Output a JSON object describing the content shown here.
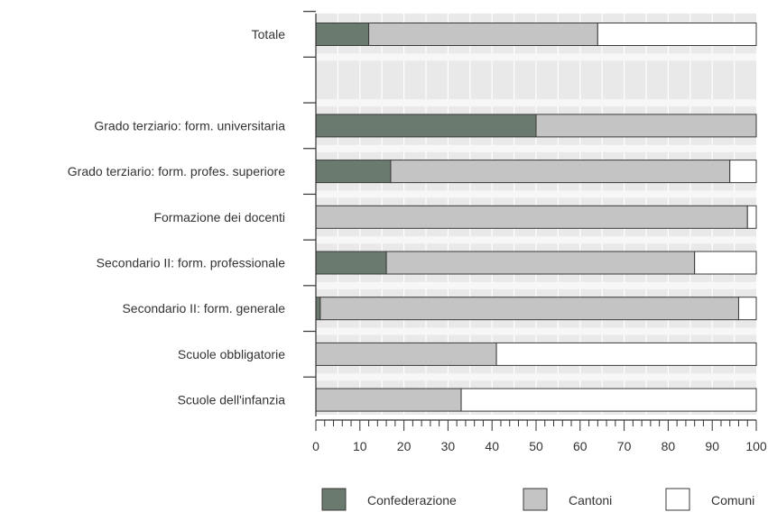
{
  "chart_data": {
    "type": "bar",
    "orientation": "horizontal",
    "stacked": true,
    "categories": [
      "Totale",
      "",
      "Grado terziario: form. universitaria",
      "Grado terziario: form. profes. superiore",
      "Formazione dei docenti",
      "Secondario II: form. professionale",
      "Secondario II: form. generale",
      "Scuole obbligatorie",
      "Scuole dell'infanzia"
    ],
    "series": [
      {
        "name": "Confederazione",
        "color": "#6b7a6e",
        "values": [
          12,
          null,
          50,
          17,
          0,
          16,
          1,
          0,
          0
        ]
      },
      {
        "name": "Cantoni",
        "color": "#c4c4c4",
        "values": [
          52,
          null,
          50,
          77,
          98,
          70,
          95,
          41,
          33
        ]
      },
      {
        "name": "Comuni",
        "color": "#ffffff",
        "values": [
          36,
          null,
          0,
          6,
          2,
          14,
          4,
          59,
          67
        ]
      }
    ],
    "xlim": [
      0,
      100
    ],
    "xticks": [
      "0",
      "10",
      "20",
      "30",
      "40",
      "50",
      "60",
      "70",
      "80",
      "90",
      "100"
    ],
    "grid": true,
    "legend": "bottom"
  }
}
